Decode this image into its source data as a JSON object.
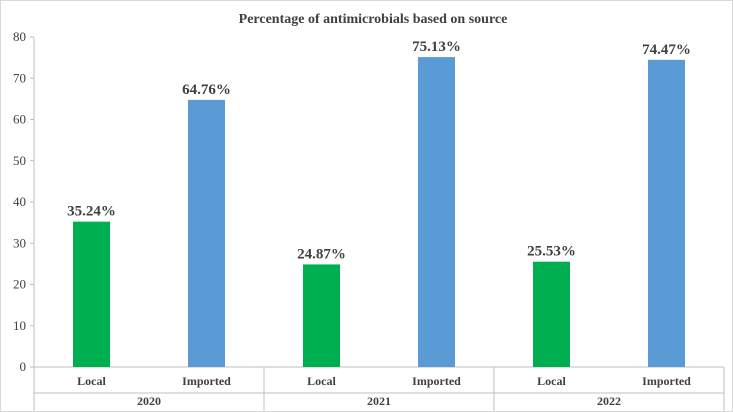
{
  "chart_data": {
    "type": "bar",
    "title": "Percentage of antimicrobials based on source",
    "xlabel": "",
    "ylabel": "",
    "ylim": [
      0,
      80
    ],
    "yticks": [
      0,
      10,
      20,
      30,
      40,
      50,
      60,
      70,
      80
    ],
    "grid": false,
    "legend": "none",
    "groups": [
      "2020",
      "2021",
      "2022"
    ],
    "categories": [
      "Local",
      "Imported"
    ],
    "series": [
      {
        "group": "2020",
        "category": "Local",
        "value": 35.24,
        "label": "35.24%",
        "color": "#00b050"
      },
      {
        "group": "2020",
        "category": "Imported",
        "value": 64.76,
        "label": "64.76%",
        "color": "#5b9bd5"
      },
      {
        "group": "2021",
        "category": "Local",
        "value": 24.87,
        "label": "24.87%",
        "color": "#00b050"
      },
      {
        "group": "2021",
        "category": "Imported",
        "value": 75.13,
        "label": "75.13%",
        "color": "#5b9bd5"
      },
      {
        "group": "2022",
        "category": "Local",
        "value": 25.53,
        "label": "25.53%",
        "color": "#00b050"
      },
      {
        "group": "2022",
        "category": "Imported",
        "value": 74.47,
        "label": "74.47%",
        "color": "#5b9bd5"
      }
    ]
  }
}
